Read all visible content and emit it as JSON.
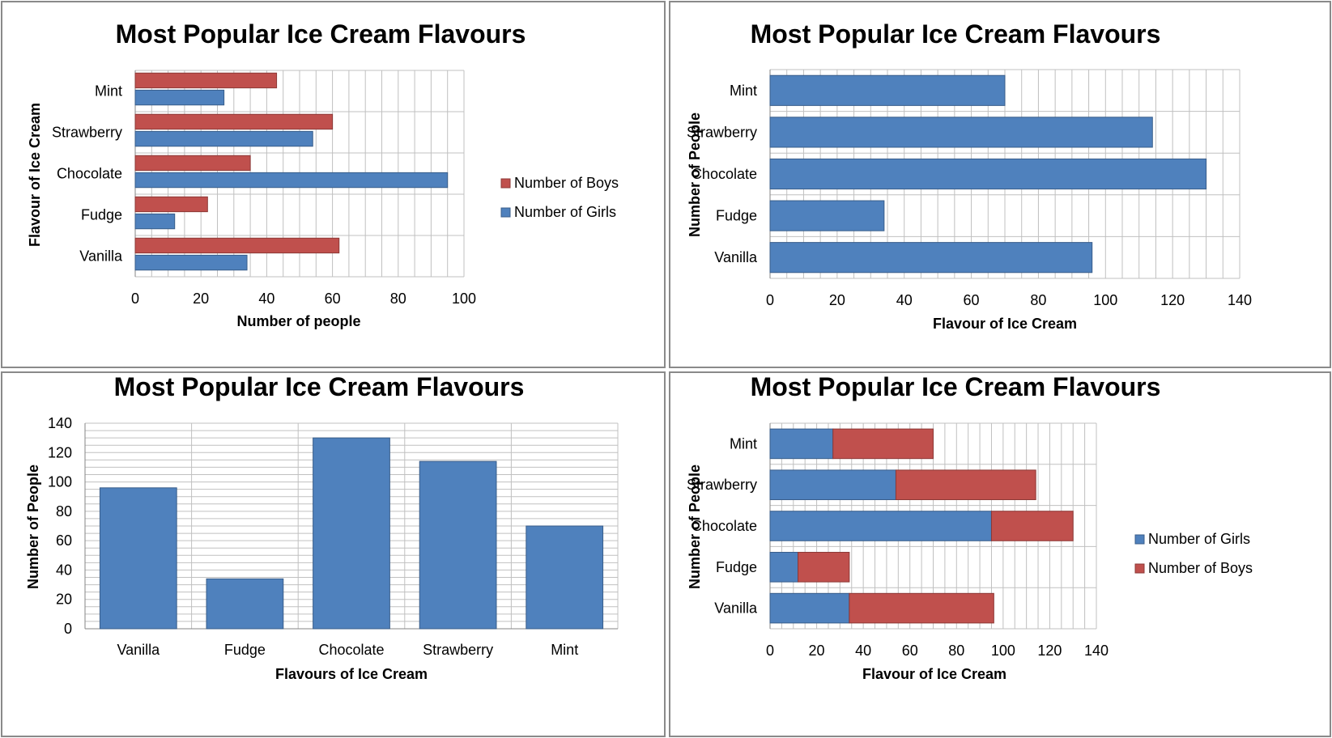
{
  "colors": {
    "boys": "#c0504d",
    "girls": "#4f81bd",
    "boys_border": "#8c3836",
    "girls_border": "#385d8a",
    "grid": "#c0c0c0",
    "axis": "#868686"
  },
  "chart_data": [
    {
      "type": "bar",
      "orientation": "horizontal",
      "title": "Most Popular Ice Cream Flavours",
      "xlabel": "Number of people",
      "ylabel": "Flavour of Ice Cream",
      "categories": [
        "Vanilla",
        "Fudge",
        "Chocolate",
        "Strawberry",
        "Mint"
      ],
      "series": [
        {
          "name": "Number of Girls",
          "values": [
            34,
            12,
            95,
            54,
            27
          ]
        },
        {
          "name": "Number of Boys",
          "values": [
            62,
            22,
            35,
            60,
            43
          ]
        }
      ],
      "legend_order": [
        "Number of Boys",
        "Number of Girls"
      ],
      "xlim": [
        0,
        100
      ],
      "xticks": [
        0,
        20,
        40,
        60,
        80,
        100
      ],
      "grid": true,
      "legend": "right"
    },
    {
      "type": "bar",
      "orientation": "horizontal",
      "title": "Most Popular Ice Cream Flavours",
      "xlabel": "Flavour of Ice Cream",
      "ylabel": "Number of People",
      "categories": [
        "Vanilla",
        "Fudge",
        "Chocolate",
        "Strawberry",
        "Mint"
      ],
      "values": [
        96,
        34,
        130,
        114,
        70
      ],
      "xlim": [
        0,
        140
      ],
      "xticks": [
        0,
        20,
        40,
        60,
        80,
        100,
        120,
        140
      ],
      "grid": true,
      "legend": "none"
    },
    {
      "type": "bar",
      "orientation": "vertical",
      "title": "Most Popular Ice Cream Flavours",
      "xlabel": "Flavours of Ice Cream",
      "ylabel": "Number of People",
      "categories": [
        "Vanilla",
        "Fudge",
        "Chocolate",
        "Strawberry",
        "Mint"
      ],
      "values": [
        96,
        34,
        130,
        114,
        70
      ],
      "ylim": [
        0,
        140
      ],
      "yticks": [
        0,
        20,
        40,
        60,
        80,
        100,
        120,
        140
      ],
      "grid": true,
      "legend": "none"
    },
    {
      "type": "bar",
      "orientation": "horizontal",
      "stacked": true,
      "title": "Most Popular Ice Cream Flavours",
      "xlabel": "Flavour of Ice Cream",
      "ylabel": "Number of People",
      "categories": [
        "Vanilla",
        "Fudge",
        "Chocolate",
        "Strawberry",
        "Mint"
      ],
      "series": [
        {
          "name": "Number of Girls",
          "values": [
            34,
            12,
            95,
            54,
            27
          ]
        },
        {
          "name": "Number of Boys",
          "values": [
            62,
            22,
            35,
            60,
            43
          ]
        }
      ],
      "legend_order": [
        "Number of Girls",
        "Number of Boys"
      ],
      "xlim": [
        0,
        140
      ],
      "xticks": [
        0,
        20,
        40,
        60,
        80,
        100,
        120,
        140
      ],
      "grid": true,
      "legend": "right"
    }
  ]
}
